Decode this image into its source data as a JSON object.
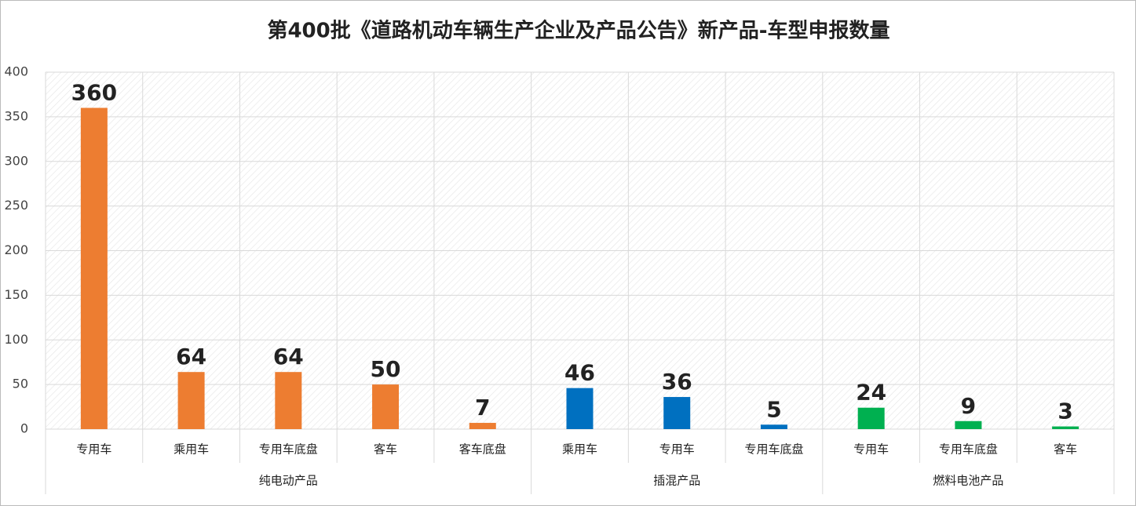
{
  "chart_data": {
    "type": "bar",
    "title": "第400批《道路机动车辆生产企业及产品公告》新产品-车型申报数量",
    "groups": [
      {
        "name": "纯电动产品",
        "color": "#ed7d31",
        "categories": [
          "专用车",
          "乘用车",
          "专用车底盘",
          "客车",
          "客车底盘"
        ],
        "values": [
          360,
          64,
          64,
          50,
          7
        ]
      },
      {
        "name": "插混产品",
        "color": "#0070c0",
        "categories": [
          "乘用车",
          "专用车",
          "专用车底盘"
        ],
        "values": [
          46,
          36,
          5
        ]
      },
      {
        "name": "燃料电池产品",
        "color": "#00b050",
        "categories": [
          "专用车",
          "专用车底盘",
          "客车"
        ],
        "values": [
          24,
          9,
          3
        ]
      }
    ],
    "ylim": [
      0,
      400
    ],
    "yticks": [
      0,
      50,
      100,
      150,
      200,
      250,
      300,
      350,
      400
    ],
    "grid": true
  }
}
